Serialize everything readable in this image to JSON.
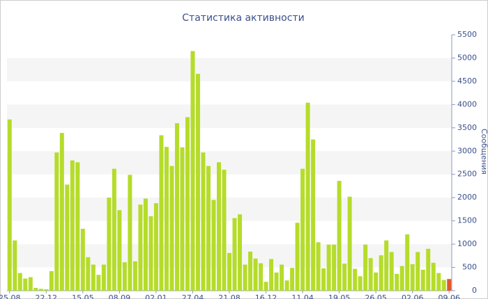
{
  "chart_data": {
    "type": "bar",
    "title": "Статистика активности",
    "y_label": "Сообщения",
    "categories": [
      "25.08",
      null,
      null,
      null,
      null,
      null,
      null,
      "22.12",
      null,
      null,
      null,
      null,
      null,
      null,
      "15.05",
      null,
      null,
      null,
      null,
      null,
      null,
      "08.09",
      null,
      null,
      null,
      null,
      null,
      null,
      "02.01",
      null,
      null,
      null,
      null,
      null,
      null,
      "27.04",
      null,
      null,
      null,
      null,
      null,
      null,
      "21.08",
      null,
      null,
      null,
      null,
      null,
      null,
      "16.12",
      null,
      null,
      null,
      null,
      null,
      null,
      "11.04",
      null,
      null,
      null,
      null,
      null,
      null,
      "19.05",
      null,
      null,
      null,
      null,
      null,
      null,
      "26.05",
      null,
      null,
      null,
      null,
      null,
      null,
      "02.06",
      null,
      null,
      null,
      null,
      null,
      null,
      "09.06"
    ],
    "values": [
      3680,
      1080,
      380,
      260,
      290,
      60,
      40,
      30,
      420,
      2970,
      3390,
      2280,
      2800,
      2760,
      1330,
      720,
      560,
      340,
      560,
      2000,
      2620,
      1730,
      610,
      2490,
      630,
      1850,
      1980,
      1600,
      1880,
      3340,
      3090,
      2680,
      3600,
      3080,
      3730,
      5150,
      4660,
      2970,
      2680,
      1950,
      2760,
      2600,
      810,
      1560,
      1640,
      560,
      840,
      690,
      590,
      190,
      680,
      390,
      560,
      220,
      490,
      1460,
      2620,
      4040,
      3250,
      1040,
      480,
      990,
      990,
      2360,
      580,
      2020,
      470,
      310,
      990,
      700,
      390,
      760,
      1080,
      830,
      360,
      530,
      1210,
      570,
      830,
      450,
      900,
      600,
      380,
      230,
      250
    ],
    "colors": [
      "#b5dc2a",
      "#b5dc2a",
      "#b5dc2a",
      "#b5dc2a",
      "#b5dc2a",
      "#b5dc2a",
      "#b5dc2a",
      "#b5dc2a",
      "#b5dc2a",
      "#b5dc2a",
      "#b5dc2a",
      "#b5dc2a",
      "#b5dc2a",
      "#b5dc2a",
      "#b5dc2a",
      "#b5dc2a",
      "#b5dc2a",
      "#b5dc2a",
      "#b5dc2a",
      "#b5dc2a",
      "#b5dc2a",
      "#b5dc2a",
      "#b5dc2a",
      "#b5dc2a",
      "#b5dc2a",
      "#b5dc2a",
      "#b5dc2a",
      "#b5dc2a",
      "#b5dc2a",
      "#b5dc2a",
      "#b5dc2a",
      "#b5dc2a",
      "#b5dc2a",
      "#b5dc2a",
      "#b5dc2a",
      "#b5dc2a",
      "#b5dc2a",
      "#b5dc2a",
      "#b5dc2a",
      "#b5dc2a",
      "#b5dc2a",
      "#b5dc2a",
      "#b5dc2a",
      "#b5dc2a",
      "#b5dc2a",
      "#b5dc2a",
      "#b5dc2a",
      "#b5dc2a",
      "#b5dc2a",
      "#b5dc2a",
      "#b5dc2a",
      "#b5dc2a",
      "#b5dc2a",
      "#b5dc2a",
      "#b5dc2a",
      "#b5dc2a",
      "#b5dc2a",
      "#b5dc2a",
      "#b5dc2a",
      "#b5dc2a",
      "#b5dc2a",
      "#b5dc2a",
      "#b5dc2a",
      "#b5dc2a",
      "#b5dc2a",
      "#b5dc2a",
      "#b5dc2a",
      "#b5dc2a",
      "#b5dc2a",
      "#b5dc2a",
      "#b5dc2a",
      "#b5dc2a",
      "#b5dc2a",
      "#b5dc2a",
      "#b5dc2a",
      "#b5dc2a",
      "#b5dc2a",
      "#b5dc2a",
      "#b5dc2a",
      "#b5dc2a",
      "#b5dc2a",
      "#b5dc2a",
      "#b5dc2a",
      "#b5dc2a",
      "#e0582c"
    ],
    "ylim": [
      0,
      5500
    ],
    "yticks": [
      0,
      500,
      1000,
      1500,
      2000,
      2500,
      3000,
      3500,
      4000,
      4500,
      5000,
      5500
    ],
    "grid": true
  }
}
